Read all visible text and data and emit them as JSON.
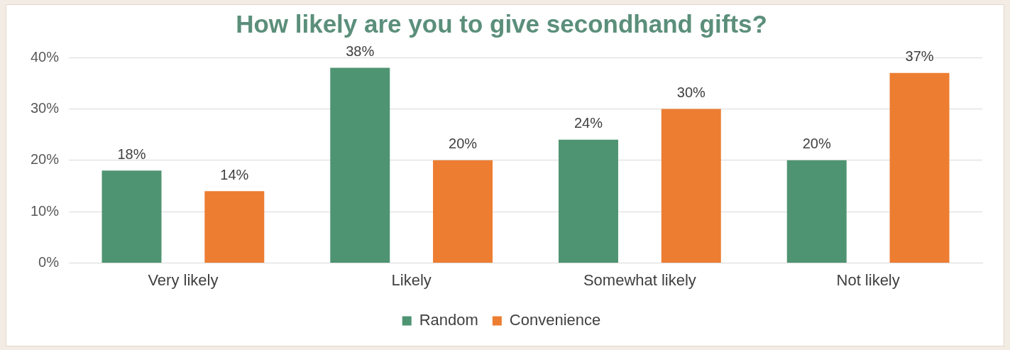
{
  "chart_data": {
    "type": "bar",
    "title": "How likely are you to give secondhand gifts?",
    "categories": [
      "Very likely",
      "Likely",
      "Somewhat likely",
      "Not likely"
    ],
    "series": [
      {
        "name": "Random",
        "color": "#4f9472",
        "values": [
          18,
          38,
          24,
          20
        ],
        "value_labels": [
          "18%",
          "38%",
          "24%",
          "20%"
        ]
      },
      {
        "name": "Convenience",
        "color": "#ed7d31",
        "values": [
          14,
          20,
          30,
          37
        ],
        "value_labels": [
          "14%",
          "20%",
          "30%",
          "37%"
        ]
      }
    ],
    "ylim": [
      0,
      40
    ],
    "yticks": [
      {
        "value": 0,
        "label": "0%"
      },
      {
        "value": 10,
        "label": "10%"
      },
      {
        "value": 20,
        "label": "20%"
      },
      {
        "value": 30,
        "label": "30%"
      },
      {
        "value": 40,
        "label": "40%"
      }
    ],
    "grid": "y",
    "legend": "bottom"
  }
}
